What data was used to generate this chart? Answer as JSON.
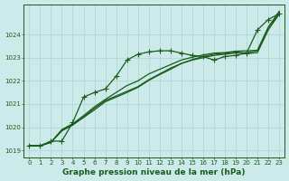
{
  "title": "Graphe pression niveau de la mer (hPa)",
  "bg_color": "#cceaea",
  "grid_color": "#b0d8d8",
  "line_color": "#1a5c1a",
  "marker_color": "#1a5c1a",
  "ylim": [
    1018.7,
    1025.3
  ],
  "yticks": [
    1019,
    1020,
    1021,
    1022,
    1023,
    1024
  ],
  "xlim": [
    -0.5,
    23.5
  ],
  "xticks": [
    0,
    1,
    2,
    3,
    4,
    5,
    6,
    7,
    8,
    9,
    10,
    11,
    12,
    13,
    14,
    15,
    16,
    17,
    18,
    19,
    20,
    21,
    22,
    23
  ],
  "series": [
    [
      1019.2,
      1019.2,
      1019.4,
      1019.4,
      1020.2,
      1021.3,
      1021.5,
      1021.65,
      1022.2,
      1022.9,
      1023.15,
      1023.25,
      1023.3,
      1023.3,
      1023.2,
      1023.1,
      1023.05,
      1022.9,
      1023.05,
      1023.1,
      1023.2,
      1024.2,
      1024.65,
      1024.9
    ],
    [
      1019.2,
      1019.2,
      1019.35,
      1019.85,
      1020.1,
      1020.45,
      1020.82,
      1021.15,
      1021.35,
      1021.55,
      1021.75,
      1022.05,
      1022.3,
      1022.55,
      1022.75,
      1022.9,
      1023.0,
      1023.1,
      1023.15,
      1023.2,
      1023.22,
      1023.3,
      1024.3,
      1024.9
    ],
    [
      1019.2,
      1019.2,
      1019.35,
      1019.85,
      1020.1,
      1020.42,
      1020.75,
      1021.1,
      1021.3,
      1021.5,
      1021.72,
      1022.02,
      1022.27,
      1022.5,
      1022.75,
      1022.92,
      1023.05,
      1023.15,
      1023.2,
      1023.25,
      1023.18,
      1023.22,
      1024.2,
      1024.88
    ],
    [
      1019.2,
      1019.2,
      1019.35,
      1019.9,
      1020.15,
      1020.5,
      1020.88,
      1021.2,
      1021.5,
      1021.8,
      1022.0,
      1022.3,
      1022.5,
      1022.7,
      1022.9,
      1023.02,
      1023.12,
      1023.2,
      1023.22,
      1023.28,
      1023.3,
      1023.32,
      1024.32,
      1025.0
    ]
  ],
  "series_markers": [
    true,
    false,
    false,
    false
  ],
  "marker_char": "+",
  "marker_size": 4,
  "linewidth": 0.9,
  "tick_fontsize": 5.0,
  "label_fontsize": 6.5
}
